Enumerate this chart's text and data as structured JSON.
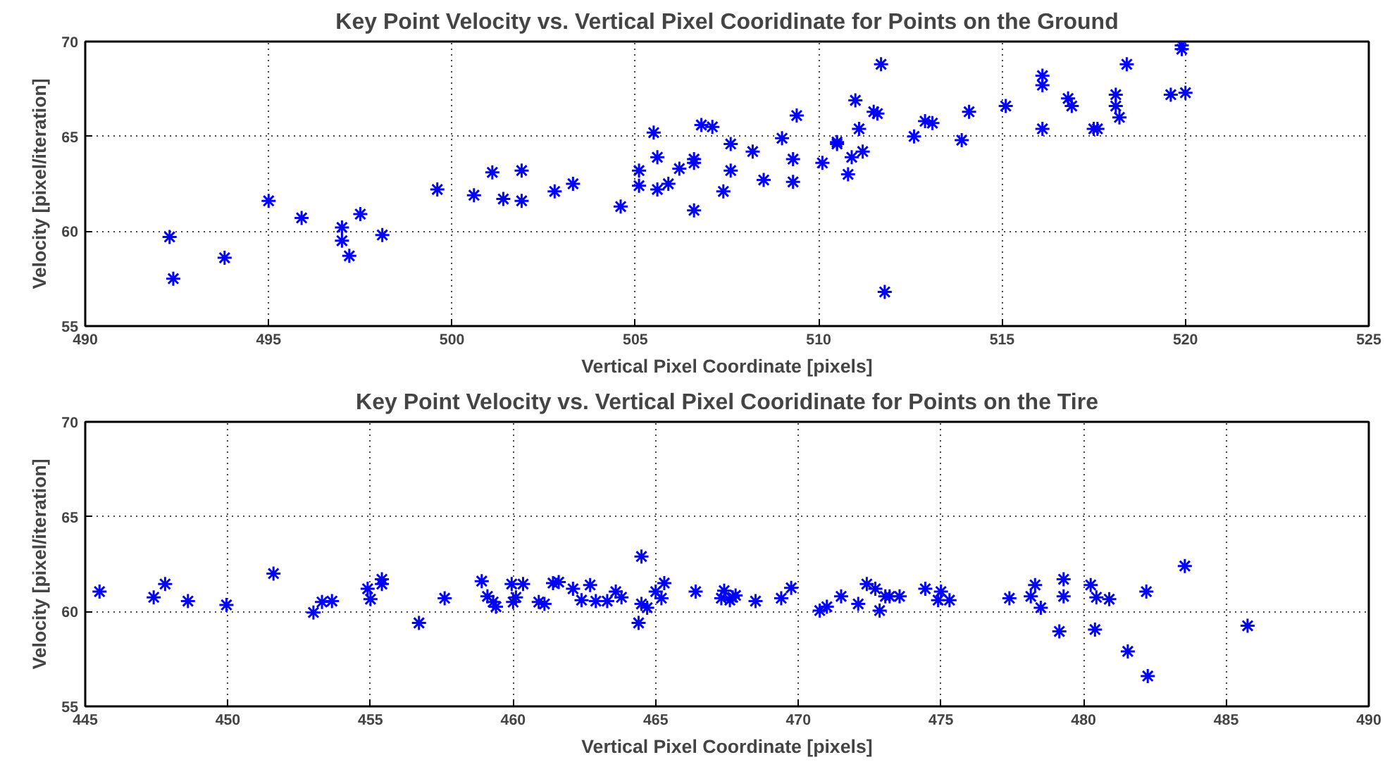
{
  "chart_data": [
    {
      "type": "scatter",
      "title": "Key Point Velocity vs. Vertical Pixel Cooridinate for Points on the Ground",
      "xlabel": "Vertical Pixel Coordinate [pixels]",
      "ylabel": "Velocity [pixel/iteration]",
      "marker": "cross",
      "grid": true,
      "xlim": [
        490,
        525
      ],
      "xticks": [
        490,
        495,
        500,
        505,
        510,
        515,
        520,
        525
      ],
      "ylim": [
        55,
        70
      ],
      "yticks": [
        55,
        60,
        65,
        70
      ],
      "series": [
        {
          "color": "#0000ff",
          "x": [
            492.3,
            492.4,
            493.8,
            495.0,
            495.9,
            497.0,
            497.0,
            497.2,
            497.5,
            498.1,
            499.6,
            500.6,
            501.1,
            501.4,
            501.9,
            501.9,
            502.8,
            503.3,
            504.6,
            505.1,
            505.1,
            505.5,
            505.6,
            505.6,
            505.9,
            506.2,
            506.6,
            506.6,
            506.6,
            506.8,
            507.1,
            507.4,
            507.6,
            507.6,
            508.2,
            508.5,
            509.0,
            509.3,
            509.3,
            509.4,
            510.1,
            510.5,
            510.5,
            510.8,
            510.9,
            511.0,
            511.1,
            511.2,
            511.5,
            511.6,
            511.7,
            511.8,
            512.6,
            512.9,
            513.1,
            513.9,
            514.1,
            515.1,
            516.1,
            516.1,
            516.1,
            516.8,
            516.9,
            517.5,
            517.6,
            518.1,
            518.1,
            518.2,
            518.4,
            519.6,
            519.9,
            519.9,
            520.0
          ],
          "values": [
            59.7,
            57.5,
            58.6,
            61.6,
            60.7,
            60.2,
            59.5,
            58.7,
            60.9,
            59.8,
            62.2,
            61.9,
            63.1,
            61.7,
            63.2,
            61.6,
            62.1,
            62.5,
            61.3,
            63.2,
            62.4,
            65.2,
            63.9,
            62.2,
            62.5,
            63.3,
            63.8,
            63.6,
            61.1,
            65.6,
            65.5,
            62.1,
            64.6,
            63.2,
            64.2,
            62.7,
            64.9,
            62.6,
            63.8,
            66.1,
            63.6,
            64.6,
            64.7,
            63.0,
            63.9,
            66.9,
            65.4,
            64.2,
            66.3,
            66.2,
            68.8,
            56.8,
            65.0,
            65.8,
            65.7,
            64.8,
            66.3,
            66.6,
            68.2,
            67.7,
            65.4,
            67.0,
            66.6,
            65.4,
            65.4,
            67.2,
            66.6,
            66.0,
            68.8,
            67.2,
            69.8,
            69.6,
            67.3
          ]
        }
      ]
    },
    {
      "type": "scatter",
      "title": "Key Point Velocity vs. Vertical Pixel Cooridinate for Points on the Tire",
      "xlabel": "Vertical Pixel Coordinate [pixels]",
      "ylabel": "Velocity [pixel/iteration]",
      "marker": "cross",
      "grid": true,
      "xlim": [
        445,
        490
      ],
      "xticks": [
        445,
        450,
        455,
        460,
        465,
        470,
        475,
        480,
        485,
        490
      ],
      "ylim": [
        55,
        70
      ],
      "yticks": [
        55,
        60,
        65,
        70
      ],
      "series": [
        {
          "color": "#0000ff",
          "x": [
            445.5,
            447.4,
            447.8,
            448.6,
            449.95,
            451.6,
            453.0,
            453.3,
            453.65,
            454.9,
            455.0,
            455.4,
            455.4,
            456.7,
            457.6,
            458.9,
            459.1,
            459.3,
            459.4,
            459.95,
            460.0,
            460.1,
            460.35,
            460.9,
            461.1,
            461.4,
            461.6,
            462.1,
            462.4,
            462.7,
            462.9,
            463.3,
            463.6,
            463.8,
            464.5,
            464.4,
            464.5,
            464.7,
            465.0,
            465.2,
            465.3,
            466.4,
            467.4,
            467.3,
            467.6,
            467.8,
            467.7,
            468.5,
            469.4,
            469.75,
            470.75,
            471.0,
            471.5,
            472.1,
            472.4,
            472.7,
            472.85,
            473.05,
            473.2,
            473.55,
            474.45,
            475.0,
            474.9,
            475.3,
            477.4,
            478.15,
            478.3,
            478.5,
            479.15,
            479.3,
            479.3,
            480.25,
            480.4,
            480.45,
            480.9,
            481.55,
            482.2,
            482.25,
            483.55,
            485.75
          ],
          "values": [
            61.05,
            60.75,
            61.45,
            60.55,
            60.35,
            62.0,
            59.95,
            60.5,
            60.55,
            61.2,
            60.65,
            61.7,
            61.45,
            59.4,
            60.7,
            61.6,
            60.8,
            60.5,
            60.25,
            61.45,
            60.5,
            60.75,
            61.45,
            60.5,
            60.4,
            61.5,
            61.55,
            61.2,
            60.6,
            61.4,
            60.55,
            60.55,
            61.05,
            60.75,
            62.9,
            59.4,
            60.4,
            60.2,
            61.05,
            60.7,
            61.5,
            61.05,
            61.1,
            60.7,
            60.6,
            60.85,
            60.75,
            60.55,
            60.7,
            61.25,
            60.05,
            60.25,
            60.8,
            60.4,
            61.45,
            61.2,
            60.05,
            60.8,
            60.8,
            60.8,
            61.2,
            61.05,
            60.6,
            60.6,
            60.7,
            60.8,
            61.4,
            60.2,
            58.95,
            61.7,
            60.8,
            61.4,
            59.05,
            60.75,
            60.65,
            57.9,
            61.05,
            56.6,
            62.4,
            59.25
          ]
        }
      ]
    }
  ]
}
